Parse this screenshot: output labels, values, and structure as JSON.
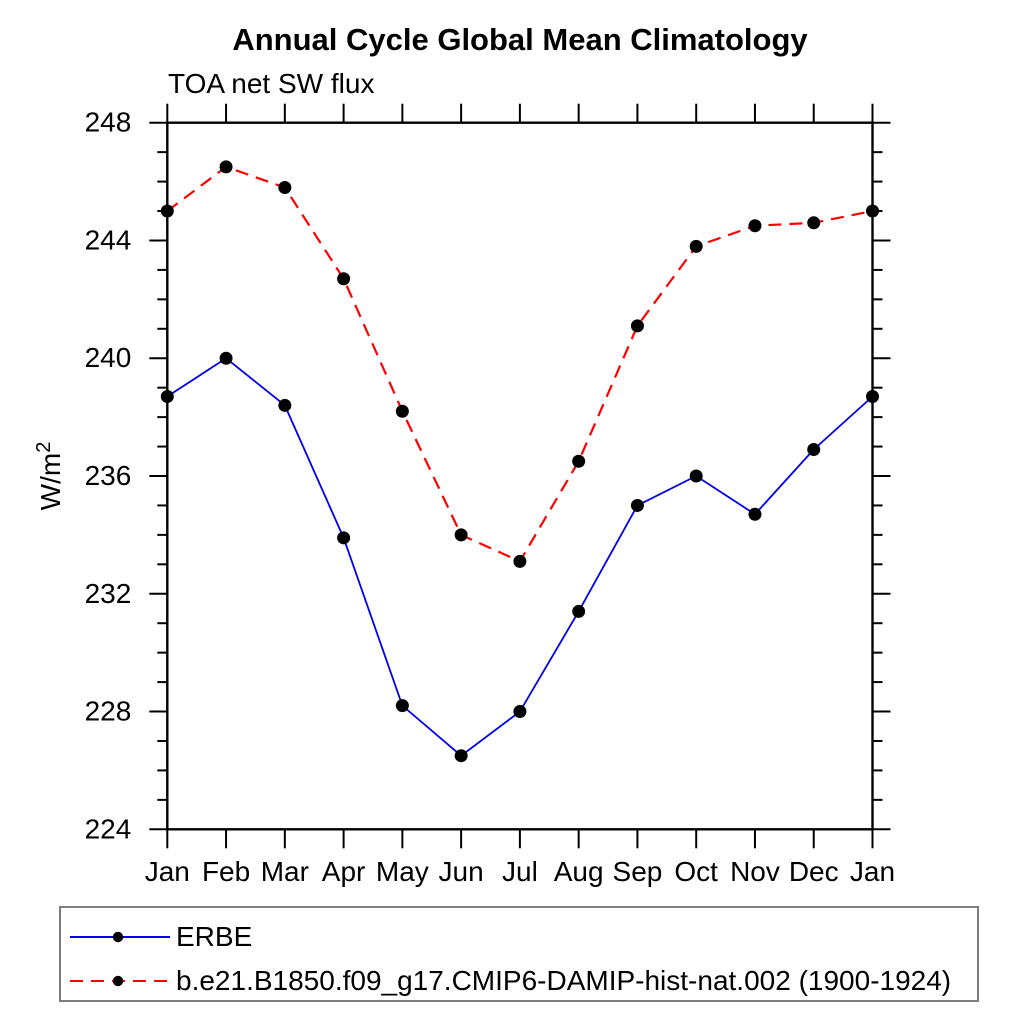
{
  "chart_data": {
    "type": "line",
    "title": "Annual Cycle Global Mean Climatology",
    "subtitle": "TOA net SW flux",
    "ylabel_base": "W/m",
    "ylabel_sup": "2",
    "categories": [
      "Jan",
      "Feb",
      "Mar",
      "Apr",
      "May",
      "Jun",
      "Jul",
      "Aug",
      "Sep",
      "Oct",
      "Nov",
      "Dec",
      "Jan"
    ],
    "ylim": [
      224,
      248
    ],
    "yticks_major": [
      224,
      228,
      232,
      236,
      240,
      244,
      248
    ],
    "ytick_minor_step": 1,
    "grid": false,
    "legend_position": "bottom-left-boxed",
    "series": [
      {
        "name": "ERBE",
        "line_color": "#0000ee",
        "line_style": "solid",
        "marker": "filled-circle",
        "marker_color": "#000000",
        "values": [
          238.7,
          240.0,
          238.4,
          233.9,
          228.2,
          226.5,
          228.0,
          231.4,
          235.0,
          236.0,
          234.7,
          236.9,
          238.7
        ]
      },
      {
        "name": "b.e21.B1850.f09_g17.CMIP6-DAMIP-hist-nat.002 (1900-1924)",
        "line_color": "#ff0000",
        "line_style": "dashed",
        "marker": "filled-circle",
        "marker_color": "#000000",
        "values": [
          245.0,
          246.5,
          245.8,
          242.7,
          238.2,
          234.0,
          233.1,
          236.5,
          241.1,
          243.8,
          244.5,
          244.6,
          245.0
        ]
      }
    ]
  },
  "colors": {
    "axis": "#000000",
    "text": "#000000",
    "legend_border": "#7d7d7d",
    "background": "#ffffff"
  }
}
